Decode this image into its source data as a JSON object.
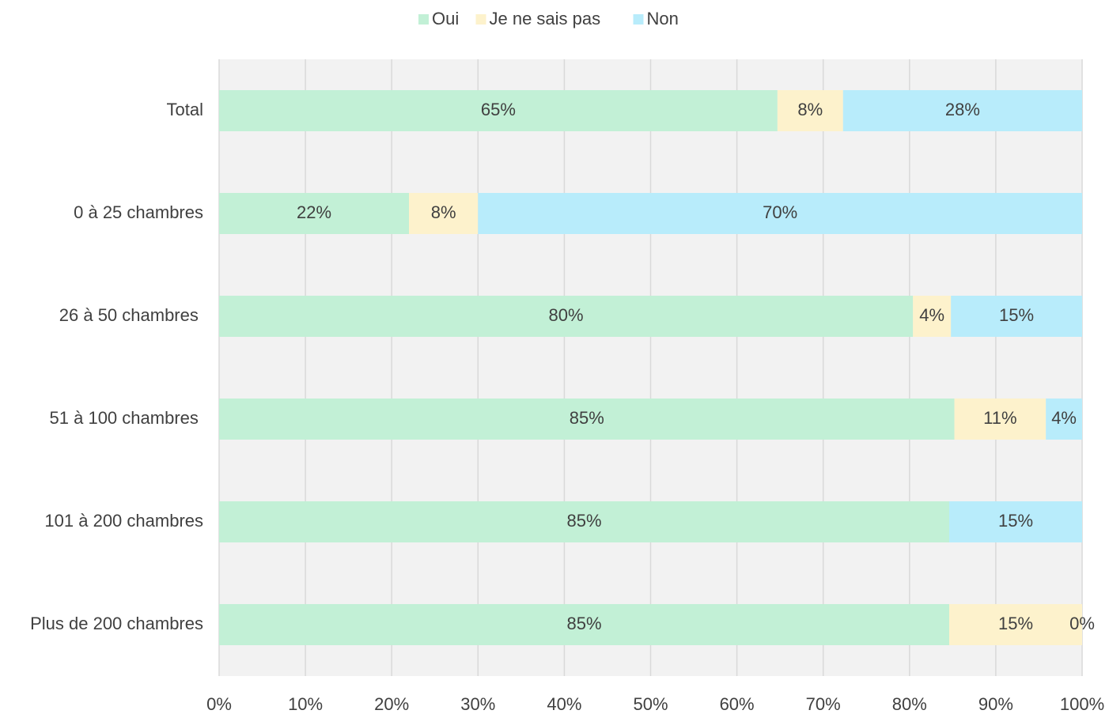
{
  "chart_data": {
    "type": "stacked_barh",
    "categories": [
      "Total",
      "0 à 25 chambres",
      "26 à 50 chambres ",
      "51 à 100 chambres ",
      "101 à 200 chambres",
      "Plus de 200 chambres"
    ],
    "series": [
      {
        "name": "Oui",
        "color": "#c2f0d6",
        "values": [
          64.7,
          22.0,
          80.4,
          85.2,
          84.6,
          84.6
        ],
        "value_labels": [
          "65%",
          "22%",
          "80%",
          "85%",
          "85%",
          "85%"
        ]
      },
      {
        "name": "Je ne sais pas",
        "color": "#fdf2cc",
        "values": [
          7.6,
          8.0,
          4.4,
          10.6,
          0,
          15.4
        ],
        "value_labels": [
          "8%",
          "8%",
          "4%",
          "11%",
          null,
          "15%"
        ]
      },
      {
        "name": "Non",
        "color": "#b8ecfb",
        "values": [
          27.7,
          70.0,
          15.2,
          4.2,
          15.4,
          0
        ],
        "value_labels": [
          "28%",
          "70%",
          "15%",
          "4%",
          "15%",
          "0%"
        ]
      }
    ],
    "xlim": [
      0,
      100
    ],
    "xticks": [
      {
        "value": 0,
        "label": "0%"
      },
      {
        "value": 10,
        "label": "10%"
      },
      {
        "value": 20,
        "label": "20%"
      },
      {
        "value": 30,
        "label": "30%"
      },
      {
        "value": 40,
        "label": "40%"
      },
      {
        "value": 50,
        "label": "50%"
      },
      {
        "value": 60,
        "label": "60%"
      },
      {
        "value": 70,
        "label": "70%"
      },
      {
        "value": 80,
        "label": "80%"
      },
      {
        "value": 90,
        "label": "90%"
      },
      {
        "value": 100,
        "label": "100%"
      }
    ],
    "grid": true,
    "legend": "top"
  }
}
